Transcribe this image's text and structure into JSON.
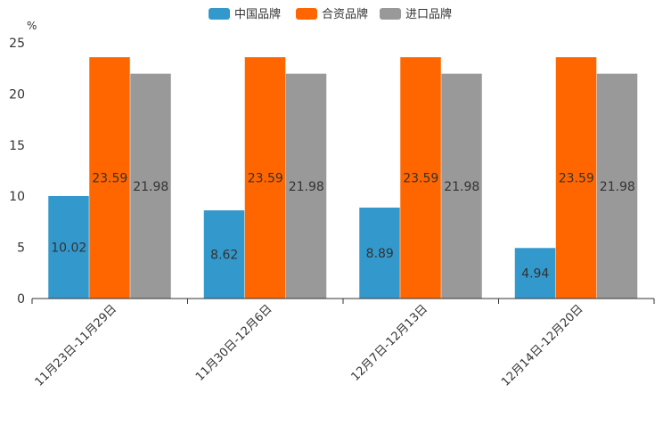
{
  "chart_data": {
    "type": "bar",
    "title": "",
    "ylabel": "%",
    "xlabel": "",
    "ylim": [
      0,
      25
    ],
    "yticks": [
      0,
      5,
      10,
      15,
      20,
      25
    ],
    "grid": false,
    "legend_position": "top-center",
    "categories": [
      "11月23日-11月29日",
      "11月30日-12月6日",
      "12月7日-12月13日",
      "12月14日-12月20日"
    ],
    "series": [
      {
        "name": "中国品牌",
        "color": "#3399cc",
        "values": [
          10.02,
          8.62,
          8.89,
          4.94
        ]
      },
      {
        "name": "合资品牌",
        "color": "#ff6600",
        "values": [
          23.59,
          23.59,
          23.59,
          23.59
        ]
      },
      {
        "name": "进口品牌",
        "color": "#999999",
        "values": [
          21.98,
          21.98,
          21.98,
          21.98
        ]
      }
    ]
  }
}
